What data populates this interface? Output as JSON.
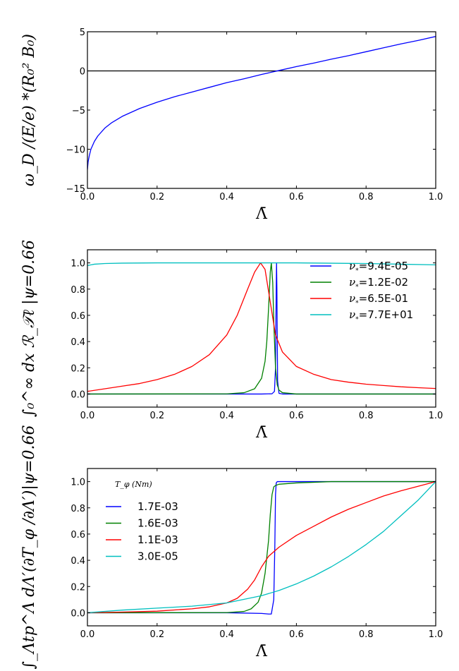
{
  "chart_data": [
    {
      "type": "line",
      "title": "",
      "xlabel": "Λ̄",
      "ylabel": "ω_D /(E/e) *(R₀² B₀)",
      "xlim": [
        0.0,
        1.0
      ],
      "ylim": [
        -15,
        5
      ],
      "xticks": [
        "0.0",
        "0.2",
        "0.4",
        "0.6",
        "0.8",
        "1.0"
      ],
      "yticks": [
        "−15",
        "−10",
        "−5",
        "0",
        "5"
      ],
      "ytick_values": [
        -15,
        -10,
        -5,
        0,
        5
      ],
      "grid": false,
      "hlines": [
        0
      ],
      "series": [
        {
          "name": "omega_D",
          "color": "#0000ff",
          "x": [
            0.0,
            0.002,
            0.005,
            0.01,
            0.02,
            0.03,
            0.05,
            0.07,
            0.1,
            0.15,
            0.2,
            0.25,
            0.3,
            0.35,
            0.4,
            0.45,
            0.5,
            0.55,
            0.6,
            0.65,
            0.7,
            0.75,
            0.8,
            0.85,
            0.9,
            0.95,
            1.0
          ],
          "y": [
            -12.6,
            -11.6,
            -10.9,
            -10.0,
            -9.0,
            -8.3,
            -7.3,
            -6.6,
            -5.8,
            -4.8,
            -4.0,
            -3.3,
            -2.7,
            -2.1,
            -1.5,
            -1.0,
            -0.45,
            0.05,
            0.55,
            1.0,
            1.5,
            1.95,
            2.45,
            2.95,
            3.45,
            3.9,
            4.4
          ]
        }
      ]
    },
    {
      "type": "line",
      "title": "",
      "xlabel": "Λ̄",
      "ylabel": "∫₀^∞ dx ℛ_𝒯ℓ |ψ=0.66",
      "xlim": [
        0.0,
        1.0
      ],
      "ylim": [
        -0.1,
        1.1
      ],
      "xticks": [
        "0.0",
        "0.2",
        "0.4",
        "0.6",
        "0.8",
        "1.0"
      ],
      "yticks": [
        "0.0",
        "0.2",
        "0.4",
        "0.6",
        "0.8",
        "1.0"
      ],
      "ytick_values": [
        0.0,
        0.2,
        0.4,
        0.6,
        0.8,
        1.0
      ],
      "grid": false,
      "legend": {
        "placement": "top-right",
        "title": ""
      },
      "series": [
        {
          "name": "ν* = 9.4E-05",
          "label_prefix": "ν",
          "label_value": "=9.4E-05",
          "color": "#0000ff",
          "x": [
            0.0,
            0.5,
            0.53,
            0.537,
            0.54,
            0.542,
            0.543,
            0.544,
            0.546,
            0.55,
            0.56,
            1.0
          ],
          "y": [
            0.0,
            0.0,
            0.002,
            0.02,
            0.2,
            0.8,
            1.0,
            0.8,
            0.1,
            0.005,
            0.0,
            0.0
          ]
        },
        {
          "name": "ν* = 1.2E-02",
          "label_prefix": "ν",
          "label_value": "=1.2E-02",
          "color": "#008000",
          "x": [
            0.0,
            0.4,
            0.45,
            0.48,
            0.5,
            0.51,
            0.515,
            0.52,
            0.525,
            0.528,
            0.532,
            0.535,
            0.54,
            0.545,
            0.55,
            0.56,
            0.6,
            1.0
          ],
          "y": [
            0.0,
            0.001,
            0.01,
            0.04,
            0.12,
            0.25,
            0.4,
            0.65,
            0.93,
            1.0,
            0.85,
            0.55,
            0.2,
            0.07,
            0.03,
            0.01,
            0.0,
            0.0
          ],
          "note": "peak near 0.527"
        },
        {
          "name": "ν* = 6.5E-01",
          "label_prefix": "ν",
          "label_value": "=6.5E-01",
          "color": "#ff0000",
          "x": [
            0.0,
            0.05,
            0.1,
            0.15,
            0.2,
            0.25,
            0.3,
            0.35,
            0.4,
            0.43,
            0.46,
            0.48,
            0.497,
            0.51,
            0.525,
            0.54,
            0.56,
            0.6,
            0.65,
            0.7,
            0.75,
            0.8,
            0.85,
            0.9,
            0.95,
            1.0
          ],
          "y": [
            0.02,
            0.04,
            0.06,
            0.08,
            0.11,
            0.15,
            0.21,
            0.3,
            0.45,
            0.6,
            0.8,
            0.93,
            1.0,
            0.95,
            0.7,
            0.45,
            0.32,
            0.21,
            0.15,
            0.11,
            0.09,
            0.075,
            0.065,
            0.055,
            0.048,
            0.042
          ]
        },
        {
          "name": "ν* = 7.7E+01",
          "label_prefix": "ν",
          "label_value": "=7.7E+01",
          "color": "#00bfbf",
          "x": [
            0.0,
            0.02,
            0.05,
            0.1,
            0.2,
            0.4,
            0.6,
            0.8,
            0.9,
            1.0
          ],
          "y": [
            0.98,
            0.99,
            0.995,
            0.998,
            1.0,
            1.0,
            1.0,
            0.995,
            0.99,
            0.985
          ]
        }
      ]
    },
    {
      "type": "line",
      "title": "",
      "xlabel": "Λ̄",
      "ylabel": "∫_Λtp^Λ dΛ′(∂T_φ /∂Λ′)|ψ=0.66",
      "xlim": [
        0.0,
        1.0
      ],
      "ylim": [
        -0.1,
        1.1
      ],
      "xticks": [
        "0.0",
        "0.2",
        "0.4",
        "0.6",
        "0.8",
        "1.0"
      ],
      "yticks": [
        "0.0",
        "0.2",
        "0.4",
        "0.6",
        "0.8",
        "1.0"
      ],
      "ytick_values": [
        0.0,
        0.2,
        0.4,
        0.6,
        0.8,
        1.0
      ],
      "grid": false,
      "legend": {
        "placement": "top-left",
        "title": "T_φ (Nm)"
      },
      "series": [
        {
          "name": "1.7E-03",
          "color": "#0000ff",
          "x": [
            0.0,
            0.4,
            0.5,
            0.52,
            0.528,
            0.535,
            0.538,
            0.54,
            0.542,
            0.545,
            0.55,
            1.0
          ],
          "y": [
            0.0,
            0.0,
            -0.005,
            -0.01,
            -0.01,
            0.1,
            0.5,
            0.9,
            0.99,
            1.0,
            1.0,
            1.0
          ]
        },
        {
          "name": "1.6E-03",
          "color": "#008000",
          "x": [
            0.0,
            0.4,
            0.45,
            0.47,
            0.49,
            0.5,
            0.51,
            0.52,
            0.525,
            0.53,
            0.535,
            0.54,
            0.55,
            0.6,
            0.7,
            1.0
          ],
          "y": [
            0.0,
            0.001,
            0.01,
            0.03,
            0.08,
            0.15,
            0.3,
            0.55,
            0.75,
            0.9,
            0.96,
            0.97,
            0.98,
            0.99,
            1.0,
            1.0
          ]
        },
        {
          "name": "1.1E-03",
          "color": "#ff0000",
          "x": [
            0.0,
            0.1,
            0.2,
            0.3,
            0.35,
            0.4,
            0.43,
            0.46,
            0.48,
            0.5,
            0.52,
            0.55,
            0.6,
            0.65,
            0.7,
            0.75,
            0.8,
            0.85,
            0.9,
            0.95,
            1.0
          ],
          "y": [
            0.0,
            0.005,
            0.012,
            0.03,
            0.045,
            0.075,
            0.11,
            0.18,
            0.25,
            0.35,
            0.43,
            0.5,
            0.59,
            0.66,
            0.73,
            0.79,
            0.84,
            0.89,
            0.93,
            0.965,
            1.0
          ]
        },
        {
          "name": "3.0E-05",
          "color": "#00bfbf",
          "x": [
            0.0,
            0.1,
            0.2,
            0.3,
            0.4,
            0.5,
            0.55,
            0.6,
            0.65,
            0.7,
            0.75,
            0.8,
            0.85,
            0.9,
            0.95,
            1.0
          ],
          "y": [
            0.0,
            0.02,
            0.035,
            0.05,
            0.075,
            0.13,
            0.17,
            0.22,
            0.28,
            0.35,
            0.43,
            0.52,
            0.62,
            0.74,
            0.86,
            1.0
          ]
        }
      ]
    }
  ]
}
